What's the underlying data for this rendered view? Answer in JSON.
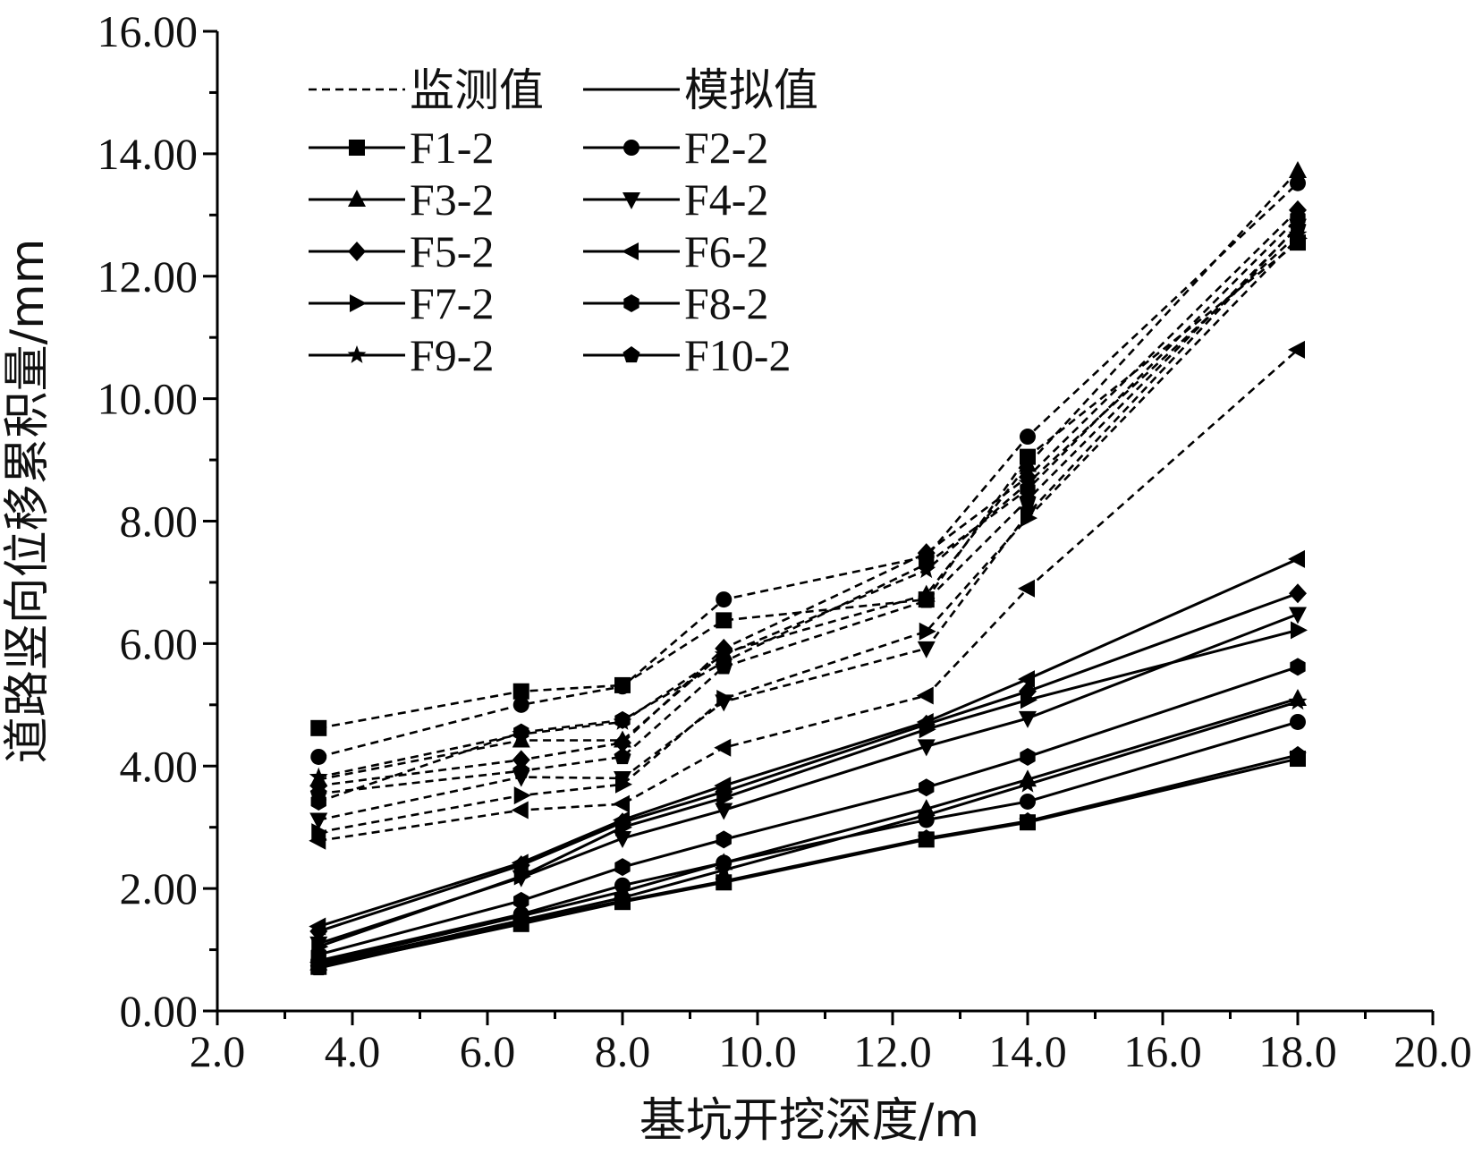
{
  "chart_data": {
    "type": "line",
    "xlabel": "基坑开挖深度/m",
    "ylabel": "道路竖向位移累积量/mm",
    "xlim": [
      2.0,
      20.0
    ],
    "ylim": [
      0.0,
      16.0
    ],
    "x_ticks": [
      "2.0",
      "4.0",
      "6.0",
      "8.0",
      "10.0",
      "12.0",
      "14.0",
      "16.0",
      "18.0",
      "20.0"
    ],
    "y_ticks": [
      "0.00",
      "2.00",
      "4.00",
      "6.00",
      "8.00",
      "10.00",
      "12.00",
      "14.00",
      "16.00"
    ],
    "x": [
      3.5,
      6.5,
      8.0,
      9.5,
      12.5,
      14.0,
      18.0
    ],
    "legend": {
      "placement": "top-left",
      "style_labels": {
        "monitored": "监测值",
        "simulated": "模拟值"
      }
    },
    "series": [
      {
        "name": "F1-2",
        "marker": "square",
        "monitored": [
          4.62,
          5.22,
          5.32,
          6.38,
          6.72,
          9.05,
          12.55
        ],
        "simulated": [
          0.72,
          1.42,
          1.78,
          2.1,
          2.8,
          3.08,
          4.12
        ]
      },
      {
        "name": "F2-2",
        "marker": "circle",
        "monitored": [
          4.15,
          5.0,
          5.3,
          6.72,
          7.42,
          9.38,
          13.52
        ],
        "simulated": [
          0.82,
          1.58,
          2.05,
          2.42,
          3.12,
          3.42,
          4.72
        ]
      },
      {
        "name": "F3-2",
        "marker": "triangle-up",
        "monitored": [
          3.78,
          4.42,
          4.42,
          5.85,
          6.8,
          8.92,
          13.72
        ],
        "simulated": [
          0.78,
          1.55,
          1.95,
          2.42,
          3.3,
          3.78,
          5.1
        ]
      },
      {
        "name": "F4-2",
        "marker": "triangle-down",
        "monitored": [
          3.12,
          3.82,
          3.8,
          5.05,
          5.92,
          8.12,
          12.82
        ],
        "simulated": [
          1.1,
          2.18,
          2.82,
          3.28,
          4.32,
          4.78,
          6.48
        ]
      },
      {
        "name": "F5-2",
        "marker": "diamond",
        "monitored": [
          3.68,
          4.1,
          4.38,
          5.92,
          7.48,
          8.72,
          13.08
        ],
        "simulated": [
          1.3,
          2.38,
          3.08,
          3.58,
          4.68,
          5.22,
          6.82
        ]
      },
      {
        "name": "F6-2",
        "marker": "triangle-left",
        "monitored": [
          2.78,
          3.28,
          3.38,
          4.3,
          5.15,
          6.9,
          10.8
        ],
        "simulated": [
          1.38,
          2.42,
          3.12,
          3.68,
          4.72,
          5.42,
          7.38
        ]
      },
      {
        "name": "F7-2",
        "marker": "triangle-right",
        "monitored": [
          2.92,
          3.52,
          3.7,
          5.1,
          6.2,
          8.05,
          12.62
        ],
        "simulated": [
          1.05,
          2.2,
          3.0,
          3.48,
          4.6,
          5.08,
          6.22
        ]
      },
      {
        "name": "F8-2",
        "marker": "hexagon",
        "monitored": [
          3.42,
          4.55,
          4.75,
          5.7,
          7.3,
          8.52,
          12.95
        ],
        "simulated": [
          0.92,
          1.8,
          2.35,
          2.8,
          3.65,
          4.15,
          5.62
        ]
      },
      {
        "name": "F9-2",
        "marker": "star",
        "monitored": [
          3.82,
          4.52,
          4.72,
          5.82,
          7.2,
          8.62,
          12.68
        ],
        "simulated": [
          0.75,
          1.48,
          1.85,
          2.3,
          3.2,
          3.7,
          5.05
        ]
      },
      {
        "name": "F10-2",
        "marker": "pentagon",
        "monitored": [
          3.55,
          3.92,
          4.15,
          5.62,
          6.7,
          8.35,
          12.8
        ],
        "simulated": [
          0.7,
          1.45,
          1.8,
          2.12,
          2.82,
          3.1,
          4.18
        ]
      }
    ]
  }
}
